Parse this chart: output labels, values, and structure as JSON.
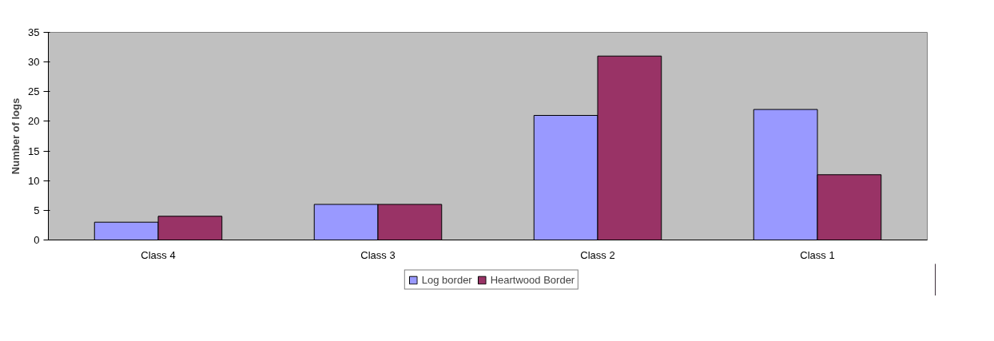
{
  "chart_data": {
    "type": "bar",
    "ylabel": "Number of logs",
    "categories": [
      "Class 4",
      "Class 3",
      "Class 2",
      "Class 1"
    ],
    "series": [
      {
        "name": "Log border",
        "color": "#9999ff",
        "values": [
          3,
          6,
          21,
          22
        ]
      },
      {
        "name": "Heartwood Border",
        "color": "#993366",
        "values": [
          4,
          6,
          31,
          11
        ]
      }
    ],
    "ylim": [
      0,
      35
    ],
    "yticks": [
      0,
      5,
      10,
      15,
      20,
      25,
      30,
      35
    ],
    "grid": false,
    "legend": "bottom"
  }
}
